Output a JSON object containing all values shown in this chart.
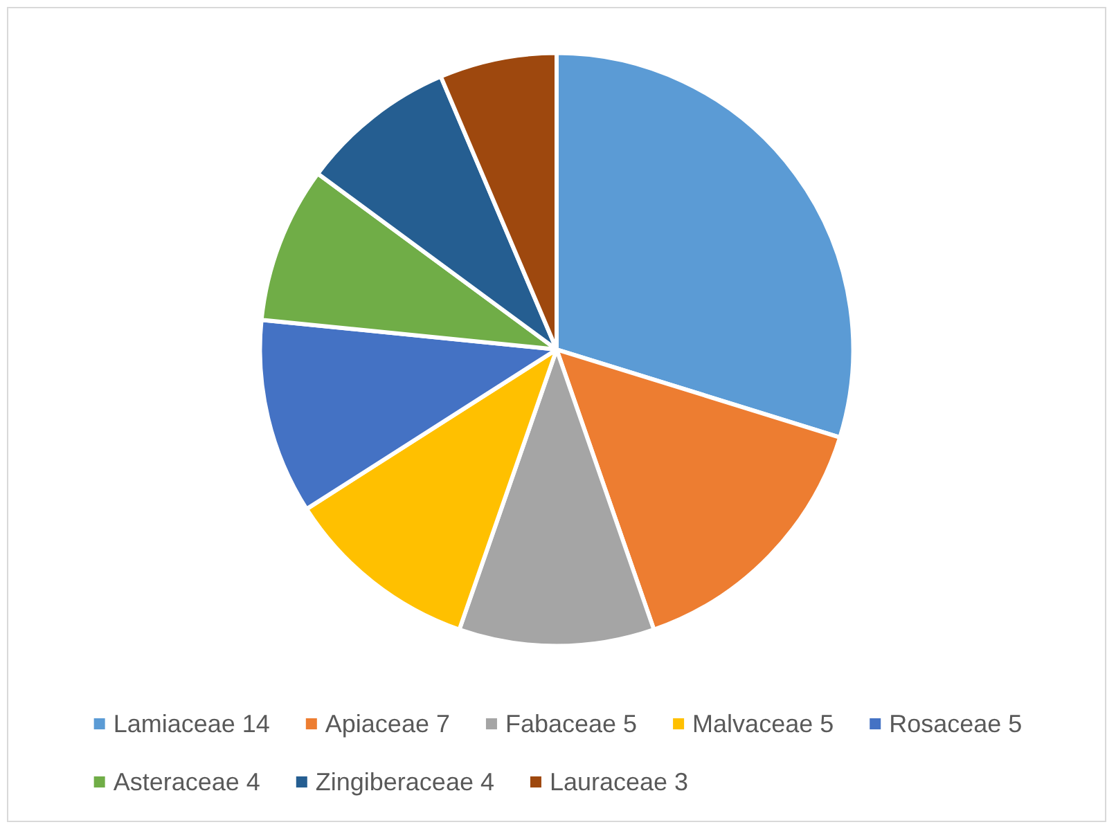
{
  "chart_data": {
    "type": "pie",
    "categories": [
      "Lamiaceae 14",
      "Apiaceae 7",
      "Fabaceae 5",
      "Malvaceae 5",
      "Rosaceae 5",
      "Asteraceae 4",
      "Zingiberaceae 4",
      "Lauraceae 3"
    ],
    "values": [
      14,
      7,
      5,
      5,
      5,
      4,
      4,
      3
    ],
    "colors": [
      "#5b9bd5",
      "#ed7d31",
      "#a5a5a5",
      "#ffc000",
      "#4472c4",
      "#70ad47",
      "#255e91",
      "#9e480e"
    ],
    "legend": "bottom"
  }
}
